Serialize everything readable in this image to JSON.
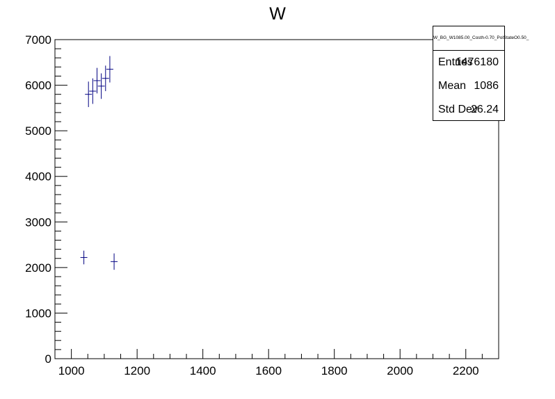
{
  "chart_data": {
    "type": "scatter",
    "title": "W",
    "xlabel": "",
    "ylabel": "",
    "xlim": [
      950,
      2300
    ],
    "ylim": [
      0,
      7000
    ],
    "x_ticks": [
      1000,
      1200,
      1400,
      1600,
      1800,
      2000,
      2200
    ],
    "y_ticks": [
      0,
      1000,
      2000,
      3000,
      4000,
      5000,
      6000,
      7000
    ],
    "grid": false,
    "points": [
      {
        "x": 1038,
        "y": 2220,
        "err": 150
      },
      {
        "x": 1052,
        "y": 5800,
        "err": 280
      },
      {
        "x": 1065,
        "y": 5870,
        "err": 280
      },
      {
        "x": 1078,
        "y": 6100,
        "err": 280
      },
      {
        "x": 1091,
        "y": 5980,
        "err": 280
      },
      {
        "x": 1104,
        "y": 6150,
        "err": 280
      },
      {
        "x": 1117,
        "y": 6350,
        "err": 290
      },
      {
        "x": 1130,
        "y": 2130,
        "err": 180
      }
    ],
    "marker_color": "#000080",
    "stats": {
      "name": "W_BG_W1085.00_Costh-0.70_PolStateO0.50_",
      "entries_label": "Entries",
      "entries": "1476180",
      "mean_label": "Mean",
      "mean": "1086",
      "std_label": "Std Dev",
      "std": "26.24"
    }
  }
}
